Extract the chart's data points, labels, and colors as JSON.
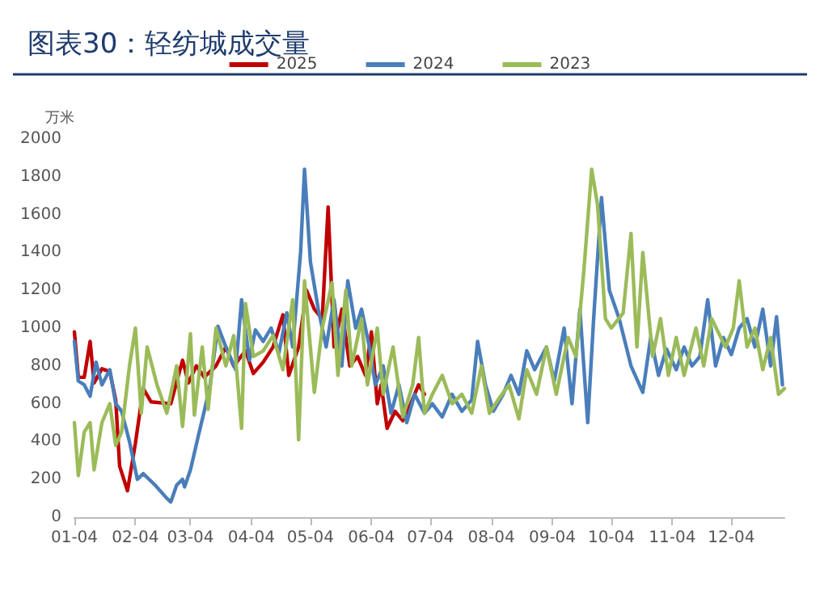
{
  "chart_data": {
    "type": "line",
    "title": "图表30：轻纺城成交量",
    "ylabel": "万米",
    "legend": "top",
    "grid": false,
    "marker": "none",
    "line_style": "solid",
    "xlim": [
      "--01-04",
      "--12-31"
    ],
    "xticks": [
      {
        "value": "--01-04",
        "label": "01-04"
      },
      {
        "value": "--02-04",
        "label": "02-04"
      },
      {
        "value": "--03-04",
        "label": "03-04"
      },
      {
        "value": "--04-04",
        "label": "04-04"
      },
      {
        "value": "--05-04",
        "label": "05-04"
      },
      {
        "value": "--06-04",
        "label": "06-04"
      },
      {
        "value": "--07-04",
        "label": "07-04"
      },
      {
        "value": "--08-04",
        "label": "08-04"
      },
      {
        "value": "--09-04",
        "label": "09-04"
      },
      {
        "value": "--10-04",
        "label": "10-04"
      },
      {
        "value": "--11-04",
        "label": "11-04"
      },
      {
        "value": "--12-04",
        "label": "12-04"
      }
    ],
    "ylim": [
      0,
      2000
    ],
    "yticks": [
      0,
      200,
      400,
      600,
      800,
      1000,
      1200,
      1400,
      1600,
      1800,
      2000
    ],
    "series": [
      {
        "name": "2025",
        "color": "#c00000",
        "x": [
          "--01-04",
          "--01-06",
          "--01-09",
          "--01-12",
          "--01-14",
          "--01-18",
          "--01-22",
          "--01-25",
          "--01-27",
          "--01-31",
          "--02-04",
          "--02-08",
          "--02-12",
          "--02-22",
          "--02-28",
          "--03-03",
          "--03-07",
          "--03-11",
          "--03-17",
          "--03-22",
          "--03-26",
          "--04-01",
          "--04-05",
          "--04-10",
          "--04-15",
          "--04-20",
          "--04-23",
          "--04-28",
          "--05-02",
          "--05-06",
          "--05-10",
          "--05-13",
          "--05-16",
          "--05-20",
          "--05-24",
          "--05-28",
          "--06-01",
          "--06-04",
          "--06-07",
          "--06-09",
          "--06-12",
          "--06-16",
          "--06-20",
          "--06-24",
          "--06-28",
          "--07-01"
        ],
        "values": [
          980,
          740,
          740,
          930,
          710,
          785,
          770,
          620,
          270,
          140,
          390,
          680,
          610,
          600,
          830,
          710,
          800,
          740,
          800,
          900,
          800,
          880,
          760,
          820,
          900,
          1070,
          750,
          900,
          1200,
          1100,
          1050,
          1640,
          900,
          1100,
          800,
          850,
          750,
          980,
          600,
          700,
          470,
          560,
          510,
          600,
          700,
          650
        ]
      },
      {
        "name": "2024",
        "color": "#4a7ebb",
        "x": [
          "--01-04",
          "--01-06",
          "--01-09",
          "--01-12",
          "--01-15",
          "--01-18",
          "--01-22",
          "--01-25",
          "--01-28",
          "--02-01",
          "--02-05",
          "--02-08",
          "--02-14",
          "--02-20",
          "--02-22",
          "--02-25",
          "--02-28",
          "--03-01",
          "--03-04",
          "--03-08",
          "--03-11",
          "--03-14",
          "--03-18",
          "--03-22",
          "--03-27",
          "--03-30",
          "--04-03",
          "--04-06",
          "--04-10",
          "--04-14",
          "--04-18",
          "--04-22",
          "--04-25",
          "--04-29",
          "--05-01",
          "--05-04",
          "--05-08",
          "--05-12",
          "--05-16",
          "--05-20",
          "--05-23",
          "--05-27",
          "--05-30",
          "--06-03",
          "--06-06",
          "--06-10",
          "--06-14",
          "--06-18",
          "--06-22",
          "--06-26",
          "--07-01",
          "--07-05",
          "--07-10",
          "--07-15",
          "--07-20",
          "--07-25",
          "--07-28",
          "--08-01",
          "--08-05",
          "--08-10",
          "--08-14",
          "--08-18",
          "--08-22",
          "--08-26",
          "--09-01",
          "--09-05",
          "--09-10",
          "--09-14",
          "--09-18",
          "--09-22",
          "--09-25",
          "--09-29",
          "--10-03",
          "--10-08",
          "--10-14",
          "--10-20",
          "--10-24",
          "--10-28",
          "--11-01",
          "--11-06",
          "--11-10",
          "--11-14",
          "--11-18",
          "--11-22",
          "--11-26",
          "--11-30",
          "--12-04",
          "--12-08",
          "--12-12",
          "--12-16",
          "--12-20",
          "--12-24",
          "--12-27",
          "--12-30"
        ],
        "values": [
          930,
          720,
          700,
          640,
          820,
          700,
          780,
          600,
          560,
          400,
          200,
          230,
          170,
          100,
          80,
          170,
          200,
          160,
          250,
          430,
          560,
          700,
          1010,
          900,
          780,
          1150,
          830,
          990,
          930,
          1000,
          870,
          1080,
          900,
          1400,
          1840,
          1350,
          1100,
          900,
          1150,
          800,
          1250,
          1000,
          1100,
          900,
          700,
          800,
          550,
          700,
          500,
          650,
          550,
          600,
          530,
          650,
          560,
          620,
          930,
          700,
          560,
          650,
          750,
          650,
          880,
          780,
          900,
          720,
          1000,
          600,
          1100,
          500,
          1050,
          1690,
          1200,
          1050,
          800,
          660,
          950,
          750,
          890,
          780,
          900,
          800,
          850,
          1150,
          800,
          950,
          860,
          1000,
          1050,
          900,
          1100,
          800,
          1060,
          700
        ]
      },
      {
        "name": "2023",
        "color": "#9bbb59",
        "x": [
          "--01-04",
          "--01-06",
          "--01-09",
          "--01-12",
          "--01-14",
          "--01-18",
          "--01-22",
          "--01-25",
          "--01-28",
          "--02-01",
          "--02-04",
          "--02-07",
          "--02-10",
          "--02-15",
          "--02-20",
          "--02-25",
          "--02-28",
          "--03-04",
          "--03-06",
          "--03-10",
          "--03-13",
          "--03-17",
          "--03-22",
          "--03-26",
          "--03-30",
          "--04-01",
          "--04-05",
          "--04-10",
          "--04-15",
          "--04-20",
          "--04-25",
          "--04-28",
          "--05-01",
          "--05-06",
          "--05-10",
          "--05-15",
          "--05-18",
          "--05-22",
          "--05-25",
          "--05-30",
          "--06-02",
          "--06-07",
          "--06-10",
          "--06-15",
          "--06-20",
          "--06-25",
          "--06-28",
          "--07-01",
          "--07-05",
          "--07-10",
          "--07-15",
          "--07-20",
          "--07-25",
          "--07-30",
          "--08-03",
          "--08-08",
          "--08-13",
          "--08-18",
          "--08-22",
          "--08-27",
          "--09-01",
          "--09-06",
          "--09-12",
          "--09-16",
          "--09-20",
          "--09-24",
          "--09-27",
          "--10-01",
          "--10-04",
          "--10-10",
          "--10-14",
          "--10-17",
          "--10-20",
          "--10-25",
          "--10-29",
          "--11-02",
          "--11-06",
          "--11-10",
          "--11-16",
          "--11-20",
          "--11-24",
          "--12-01",
          "--12-05",
          "--12-08",
          "--12-12",
          "--12-16",
          "--12-20",
          "--12-24",
          "--12-28",
          "--12-31"
        ],
        "values": [
          500,
          220,
          450,
          500,
          250,
          500,
          600,
          380,
          450,
          800,
          1000,
          550,
          900,
          700,
          550,
          800,
          480,
          970,
          540,
          900,
          570,
          1000,
          800,
          960,
          470,
          1130,
          850,
          880,
          960,
          780,
          1150,
          410,
          1250,
          660,
          1000,
          1240,
          750,
          1200,
          800,
          1050,
          700,
          1000,
          650,
          900,
          530,
          700,
          950,
          550,
          650,
          750,
          600,
          650,
          550,
          800,
          550,
          630,
          700,
          520,
          780,
          650,
          900,
          650,
          950,
          850,
          1300,
          1840,
          1650,
          1050,
          1000,
          1080,
          1500,
          900,
          1400,
          850,
          1050,
          750,
          950,
          750,
          1000,
          800,
          1050,
          900,
          1000,
          1250,
          900,
          1000,
          780,
          950,
          650,
          680
        ]
      }
    ]
  }
}
